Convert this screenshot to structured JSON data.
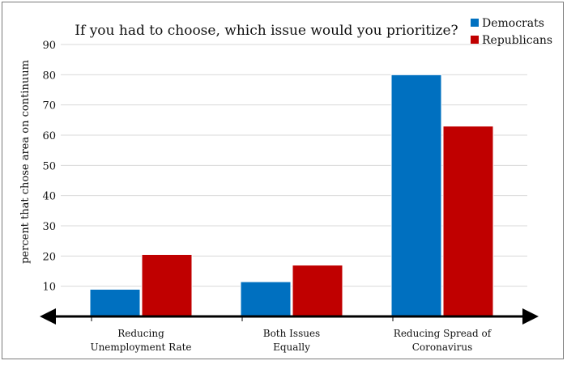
{
  "chart_data": {
    "type": "bar",
    "title": "If you had to choose, which issue would you prioritize?",
    "xlabel": "",
    "ylabel": "percent that chose area on continuum",
    "ylim": [
      0,
      90
    ],
    "yticks": [
      10,
      20,
      30,
      40,
      50,
      60,
      70,
      80,
      90
    ],
    "grid": true,
    "legend_position": "top-right",
    "categories": [
      [
        "Reducing",
        "Unemployment Rate"
      ],
      [
        "Both Issues",
        "Equally"
      ],
      [
        "Reducing Spread of",
        "Coronavirus"
      ]
    ],
    "series": [
      {
        "name": "Democrats",
        "color": "#0070c0",
        "values": [
          9,
          11.5,
          80
        ]
      },
      {
        "name": "Republicans",
        "color": "#c00000",
        "values": [
          20.5,
          17,
          63
        ]
      }
    ]
  }
}
